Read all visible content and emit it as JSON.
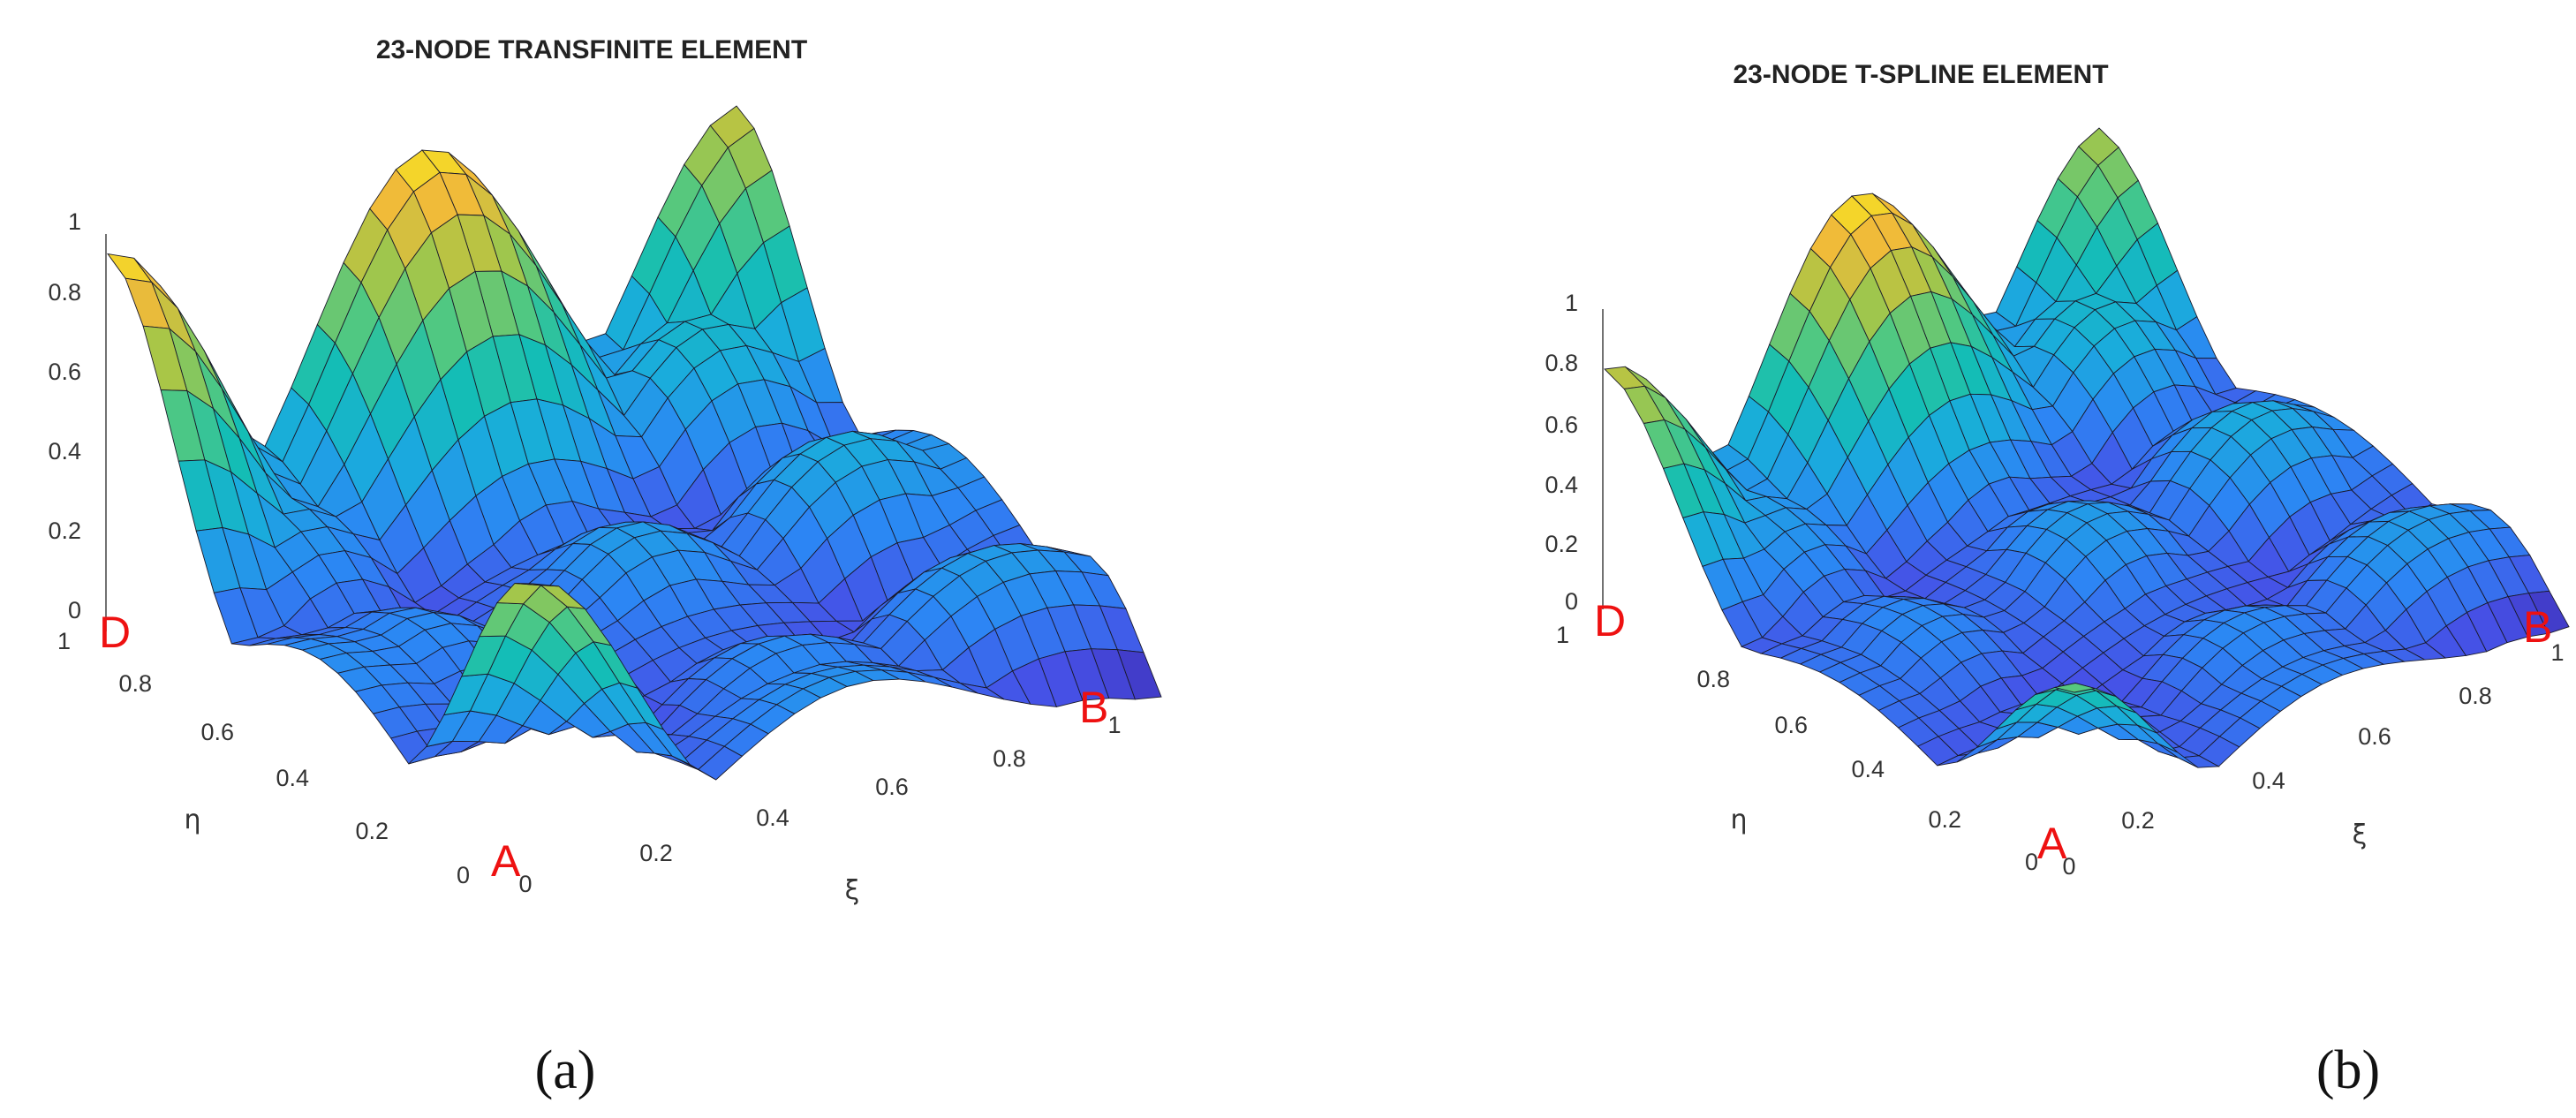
{
  "chart_data": [
    {
      "type": "surface3d",
      "title": "23-NODE TRANSFINITE ELEMENT",
      "caption": "(a)",
      "xlabel": "ξ",
      "ylabel": "η",
      "x_ticks": [
        "0",
        "0.2",
        "0.4",
        "0.6",
        "0.8",
        "1"
      ],
      "y_ticks": [
        "0",
        "0.2",
        "0.4",
        "0.6",
        "0.8",
        "1"
      ],
      "z_ticks": [
        "0",
        "0.2",
        "0.4",
        "0.6",
        "0.8",
        "1"
      ],
      "xlim": [
        0,
        1
      ],
      "ylim": [
        0,
        1
      ],
      "zlim": [
        0,
        1
      ],
      "corner_labels": [
        "A",
        "B",
        "D"
      ],
      "grid": false,
      "colormap": "parula"
    },
    {
      "type": "surface3d",
      "title": "23-NODE T-SPLINE ELEMENT",
      "caption": "(b)",
      "xlabel": "ξ",
      "ylabel": "η",
      "x_ticks": [
        "0",
        "0.2",
        "0.4",
        "0.6",
        "0.8",
        "1"
      ],
      "y_ticks": [
        "0",
        "0.2",
        "0.4",
        "0.6",
        "0.8",
        "1"
      ],
      "z_ticks": [
        "0",
        "0.2",
        "0.4",
        "0.6",
        "0.8",
        "1"
      ],
      "xlim": [
        0,
        1
      ],
      "ylim": [
        0,
        1
      ],
      "zlim": [
        0,
        1
      ],
      "corner_labels": [
        "A",
        "B",
        "D"
      ],
      "grid": false,
      "colormap": "parula"
    }
  ]
}
